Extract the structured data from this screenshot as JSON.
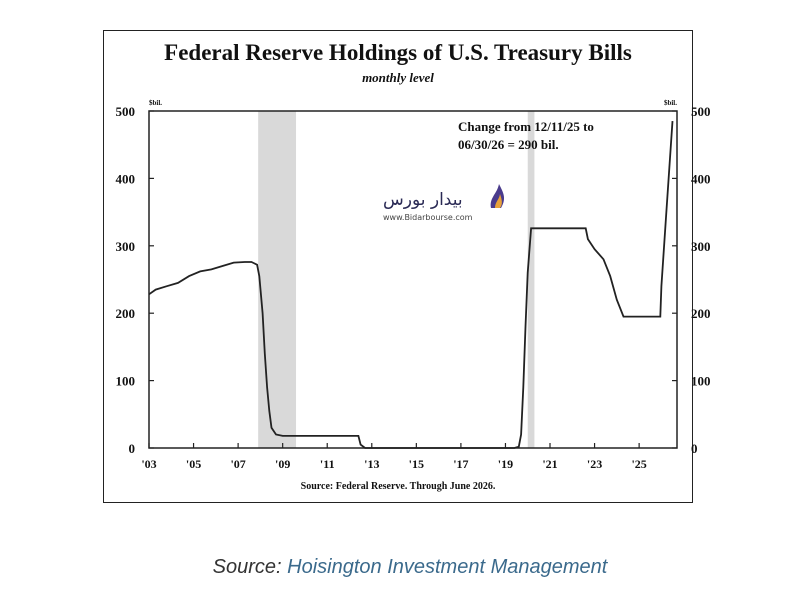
{
  "chart_data": {
    "type": "line",
    "title": "Federal Reserve Holdings of U.S. Treasury Bills",
    "subtitle": "monthly level",
    "unit_left": "$bil.",
    "unit_right": "$bil.",
    "xlim": [
      2003,
      2026.7
    ],
    "ylim": [
      0,
      500
    ],
    "y_ticks": [
      0,
      100,
      200,
      300,
      400,
      500
    ],
    "x_ticks": [
      {
        "value": 2003,
        "label": "'03"
      },
      {
        "value": 2005,
        "label": "'05"
      },
      {
        "value": 2007,
        "label": "'07"
      },
      {
        "value": 2009,
        "label": "'09"
      },
      {
        "value": 2011,
        "label": "'11"
      },
      {
        "value": 2013,
        "label": "'13"
      },
      {
        "value": 2015,
        "label": "'15"
      },
      {
        "value": 2017,
        "label": "'17"
      },
      {
        "value": 2019,
        "label": "'19"
      },
      {
        "value": 2021,
        "label": "'21"
      },
      {
        "value": 2023,
        "label": "'23"
      },
      {
        "value": 2025,
        "label": "'25"
      }
    ],
    "shaded_periods": [
      {
        "start": 2007.9,
        "end": 2009.6
      },
      {
        "start": 2020.0,
        "end": 2020.3
      }
    ],
    "series": [
      {
        "values": [
          [
            2003.0,
            228
          ],
          [
            2003.3,
            235
          ],
          [
            2003.8,
            240
          ],
          [
            2004.3,
            245
          ],
          [
            2004.8,
            255
          ],
          [
            2005.3,
            262
          ],
          [
            2005.8,
            265
          ],
          [
            2006.3,
            270
          ],
          [
            2006.8,
            275
          ],
          [
            2007.3,
            276
          ],
          [
            2007.6,
            276
          ],
          [
            2007.85,
            272
          ],
          [
            2007.95,
            255
          ],
          [
            2008.1,
            200
          ],
          [
            2008.2,
            140
          ],
          [
            2008.3,
            90
          ],
          [
            2008.4,
            55
          ],
          [
            2008.5,
            30
          ],
          [
            2008.7,
            20
          ],
          [
            2009.0,
            18
          ],
          [
            2010.0,
            18
          ],
          [
            2011.0,
            18
          ],
          [
            2012.0,
            18
          ],
          [
            2012.4,
            18
          ],
          [
            2012.5,
            5
          ],
          [
            2012.7,
            0
          ],
          [
            2015.0,
            0
          ],
          [
            2018.0,
            0
          ],
          [
            2019.4,
            0
          ],
          [
            2019.6,
            2
          ],
          [
            2019.7,
            20
          ],
          [
            2019.8,
            90
          ],
          [
            2019.9,
            180
          ],
          [
            2020.0,
            260
          ],
          [
            2020.15,
            326
          ],
          [
            2021.0,
            326
          ],
          [
            2022.0,
            326
          ],
          [
            2022.6,
            326
          ],
          [
            2022.7,
            310
          ],
          [
            2023.0,
            295
          ],
          [
            2023.4,
            280
          ],
          [
            2023.7,
            255
          ],
          [
            2024.0,
            220
          ],
          [
            2024.3,
            195
          ],
          [
            2025.0,
            195
          ],
          [
            2025.5,
            195
          ],
          [
            2025.95,
            195
          ],
          [
            2026.0,
            240
          ],
          [
            2026.2,
            340
          ],
          [
            2026.5,
            485
          ]
        ]
      }
    ],
    "annotation": [
      "Change from 12/11/25 to",
      "06/30/26 = 290 bil."
    ],
    "source_note": "Source: Federal Reserve. Through June 2026."
  },
  "watermark": {
    "name": "بیدار بورس",
    "url": "www.Bidarbourse.com"
  },
  "caption": {
    "prefix": "Source: ",
    "organization": "Hoisington Investment Management"
  }
}
